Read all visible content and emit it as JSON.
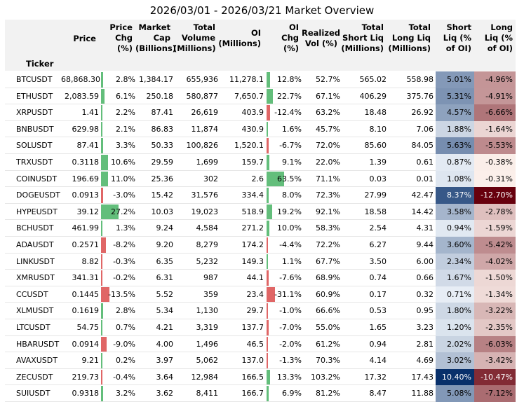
{
  "chart_data": {
    "type": "table",
    "title": "2026/03/01 - 2026/03/21 Market Overview",
    "index_label": "Ticker",
    "columns": [
      "Price",
      "Price Chg (%)",
      "Market Cap (Billions)",
      "Total Volume (Millions)",
      "OI (Millions)",
      "OI Chg (%)",
      "Realized Vol (%)",
      "Total Short Liq (Millions)",
      "Total Long Liq (Millions)",
      "Short Liq (% of OI)",
      "Long Liq (% of OI)"
    ],
    "rows": [
      {
        "ticker": "BTCUSDT",
        "price": "68,868.30",
        "price_chg": "2.8%",
        "mcap": "1,384.17",
        "volume": "655,936",
        "oi": "11,278.1",
        "oi_chg": "12.8%",
        "rvol": "52.7%",
        "short_liq": "565.02",
        "long_liq": "558.98",
        "short_pct": "5.01%",
        "long_pct": "-4.96%"
      },
      {
        "ticker": "ETHUSDT",
        "price": "2,083.59",
        "price_chg": "6.1%",
        "mcap": "250.18",
        "volume": "580,877",
        "oi": "7,650.7",
        "oi_chg": "22.7%",
        "rvol": "67.1%",
        "short_liq": "406.29",
        "long_liq": "375.76",
        "short_pct": "5.31%",
        "long_pct": "-4.91%"
      },
      {
        "ticker": "XRPUSDT",
        "price": "1.41",
        "price_chg": "2.2%",
        "mcap": "87.41",
        "volume": "26,619",
        "oi": "403.9",
        "oi_chg": "-12.4%",
        "rvol": "63.2%",
        "short_liq": "18.48",
        "long_liq": "26.92",
        "short_pct": "4.57%",
        "long_pct": "-6.66%"
      },
      {
        "ticker": "BNBUSDT",
        "price": "629.98",
        "price_chg": "2.1%",
        "mcap": "86.83",
        "volume": "11,874",
        "oi": "430.9",
        "oi_chg": "1.6%",
        "rvol": "45.7%",
        "short_liq": "8.10",
        "long_liq": "7.06",
        "short_pct": "1.88%",
        "long_pct": "-1.64%"
      },
      {
        "ticker": "SOLUSDT",
        "price": "87.41",
        "price_chg": "3.3%",
        "mcap": "50.33",
        "volume": "100,826",
        "oi": "1,520.1",
        "oi_chg": "-6.7%",
        "rvol": "72.0%",
        "short_liq": "85.60",
        "long_liq": "84.05",
        "short_pct": "5.63%",
        "long_pct": "-5.53%"
      },
      {
        "ticker": "TRXUSDT",
        "price": "0.3118",
        "price_chg": "10.6%",
        "mcap": "29.59",
        "volume": "1,699",
        "oi": "159.7",
        "oi_chg": "9.1%",
        "rvol": "22.0%",
        "short_liq": "1.39",
        "long_liq": "0.61",
        "short_pct": "0.87%",
        "long_pct": "-0.38%"
      },
      {
        "ticker": "COINUSDT",
        "price": "196.69",
        "price_chg": "11.0%",
        "mcap": "25.36",
        "volume": "302",
        "oi": "2.6",
        "oi_chg": "63.5%",
        "rvol": "71.1%",
        "short_liq": "0.03",
        "long_liq": "0.01",
        "short_pct": "1.08%",
        "long_pct": "-0.31%"
      },
      {
        "ticker": "DOGEUSDT",
        "price": "0.0913",
        "price_chg": "-3.0%",
        "mcap": "15.42",
        "volume": "31,576",
        "oi": "334.4",
        "oi_chg": "8.0%",
        "rvol": "72.3%",
        "short_liq": "27.99",
        "long_liq": "42.47",
        "short_pct": "8.37%",
        "long_pct": "-12.70%"
      },
      {
        "ticker": "HYPEUSDT",
        "price": "39.12",
        "price_chg": "27.2%",
        "mcap": "10.03",
        "volume": "19,023",
        "oi": "518.9",
        "oi_chg": "19.2%",
        "rvol": "92.1%",
        "short_liq": "18.58",
        "long_liq": "14.42",
        "short_pct": "3.58%",
        "long_pct": "-2.78%"
      },
      {
        "ticker": "BCHUSDT",
        "price": "461.99",
        "price_chg": "1.3%",
        "mcap": "9.24",
        "volume": "4,584",
        "oi": "271.2",
        "oi_chg": "10.0%",
        "rvol": "58.3%",
        "short_liq": "2.54",
        "long_liq": "4.31",
        "short_pct": "0.94%",
        "long_pct": "-1.59%"
      },
      {
        "ticker": "ADAUSDT",
        "price": "0.2571",
        "price_chg": "-8.2%",
        "mcap": "9.20",
        "volume": "8,279",
        "oi": "174.2",
        "oi_chg": "-4.4%",
        "rvol": "72.2%",
        "short_liq": "6.27",
        "long_liq": "9.44",
        "short_pct": "3.60%",
        "long_pct": "-5.42%"
      },
      {
        "ticker": "LINKUSDT",
        "price": "8.82",
        "price_chg": "-0.3%",
        "mcap": "6.35",
        "volume": "5,232",
        "oi": "149.3",
        "oi_chg": "1.1%",
        "rvol": "67.7%",
        "short_liq": "3.50",
        "long_liq": "6.00",
        "short_pct": "2.34%",
        "long_pct": "-4.02%"
      },
      {
        "ticker": "XMRUSDT",
        "price": "341.31",
        "price_chg": "-0.2%",
        "mcap": "6.31",
        "volume": "987",
        "oi": "44.1",
        "oi_chg": "-7.6%",
        "rvol": "68.9%",
        "short_liq": "0.74",
        "long_liq": "0.66",
        "short_pct": "1.67%",
        "long_pct": "-1.50%"
      },
      {
        "ticker": "CCUSDT",
        "price": "0.1445",
        "price_chg": "-13.5%",
        "mcap": "5.52",
        "volume": "359",
        "oi": "23.4",
        "oi_chg": "-31.1%",
        "rvol": "60.9%",
        "short_liq": "0.17",
        "long_liq": "0.32",
        "short_pct": "0.71%",
        "long_pct": "-1.34%"
      },
      {
        "ticker": "XLMUSDT",
        "price": "0.1619",
        "price_chg": "2.8%",
        "mcap": "5.34",
        "volume": "1,130",
        "oi": "29.7",
        "oi_chg": "-1.0%",
        "rvol": "66.6%",
        "short_liq": "0.53",
        "long_liq": "0.95",
        "short_pct": "1.80%",
        "long_pct": "-3.22%"
      },
      {
        "ticker": "LTCUSDT",
        "price": "54.75",
        "price_chg": "0.7%",
        "mcap": "4.21",
        "volume": "3,319",
        "oi": "137.7",
        "oi_chg": "-7.0%",
        "rvol": "55.0%",
        "short_liq": "1.65",
        "long_liq": "3.23",
        "short_pct": "1.20%",
        "long_pct": "-2.35%"
      },
      {
        "ticker": "HBARUSDT",
        "price": "0.0914",
        "price_chg": "-9.0%",
        "mcap": "4.00",
        "volume": "1,496",
        "oi": "46.5",
        "oi_chg": "-2.0%",
        "rvol": "61.2%",
        "short_liq": "0.94",
        "long_liq": "2.81",
        "short_pct": "2.02%",
        "long_pct": "-6.03%"
      },
      {
        "ticker": "AVAXUSDT",
        "price": "9.21",
        "price_chg": "0.2%",
        "mcap": "3.97",
        "volume": "5,062",
        "oi": "137.0",
        "oi_chg": "-1.3%",
        "rvol": "70.3%",
        "short_liq": "4.14",
        "long_liq": "4.69",
        "short_pct": "3.02%",
        "long_pct": "-3.42%"
      },
      {
        "ticker": "ZECUSDT",
        "price": "219.73",
        "price_chg": "-0.4%",
        "mcap": "3.64",
        "volume": "12,984",
        "oi": "166.5",
        "oi_chg": "13.3%",
        "rvol": "103.2%",
        "short_liq": "17.32",
        "long_liq": "17.43",
        "short_pct": "10.40%",
        "long_pct": "-10.47%"
      },
      {
        "ticker": "SUIUSDT",
        "price": "0.9318",
        "price_chg": "3.2%",
        "mcap": "3.62",
        "volume": "8,411",
        "oi": "166.7",
        "oi_chg": "6.9%",
        "rvol": "81.2%",
        "short_liq": "8.47",
        "long_liq": "11.88",
        "short_pct": "5.08%",
        "long_pct": "-7.12%"
      }
    ],
    "colors": {
      "positive_bar": "#63be7b",
      "negative_bar": "#e06666",
      "short_gradient": [
        "#f7fbff",
        "#08306b"
      ],
      "long_gradient": [
        "#fff5f0",
        "#67000d"
      ],
      "header_bg": "#f2f2f2"
    }
  }
}
